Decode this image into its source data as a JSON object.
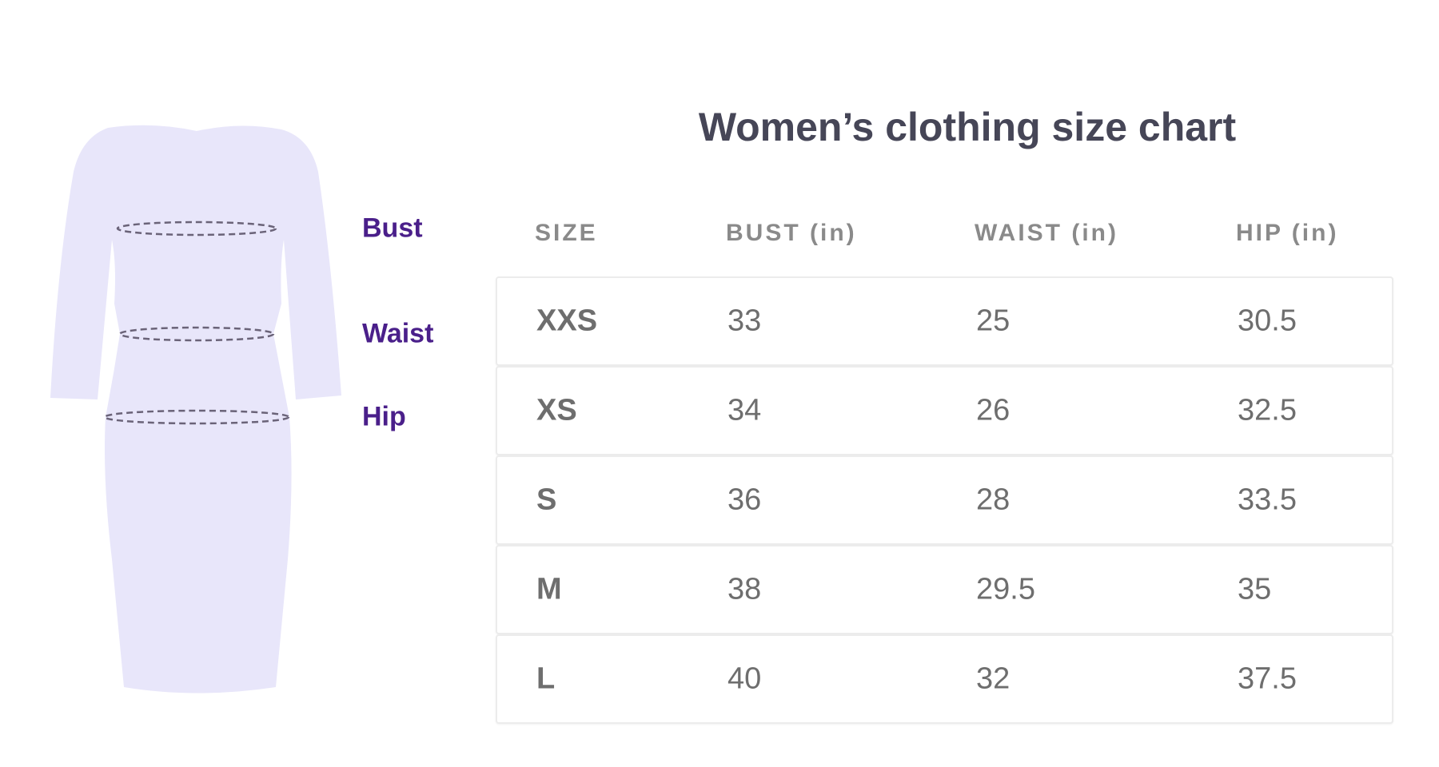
{
  "title": "Women’s clothing size chart",
  "measure_labels": {
    "bust": "Bust",
    "waist": "Waist",
    "hip": "Hip"
  },
  "headers": [
    "SIZE",
    "BUST (in)",
    "WAIST (in)",
    "HIP (in)"
  ],
  "rows": [
    [
      "XXS",
      "33",
      "25",
      "30.5"
    ],
    [
      "XS",
      "34",
      "26",
      "32.5"
    ],
    [
      "S",
      "36",
      "28",
      "33.5"
    ],
    [
      "M",
      "38",
      "29.5",
      "35"
    ],
    [
      "L",
      "40",
      "32",
      "37.5"
    ]
  ],
  "colors": {
    "dress": "#e8e6fa",
    "label": "#4a1f8a",
    "dashed_line": "#6a6378",
    "text": "#6e6e6e",
    "header": "#8a8a8a",
    "title": "#464657"
  }
}
